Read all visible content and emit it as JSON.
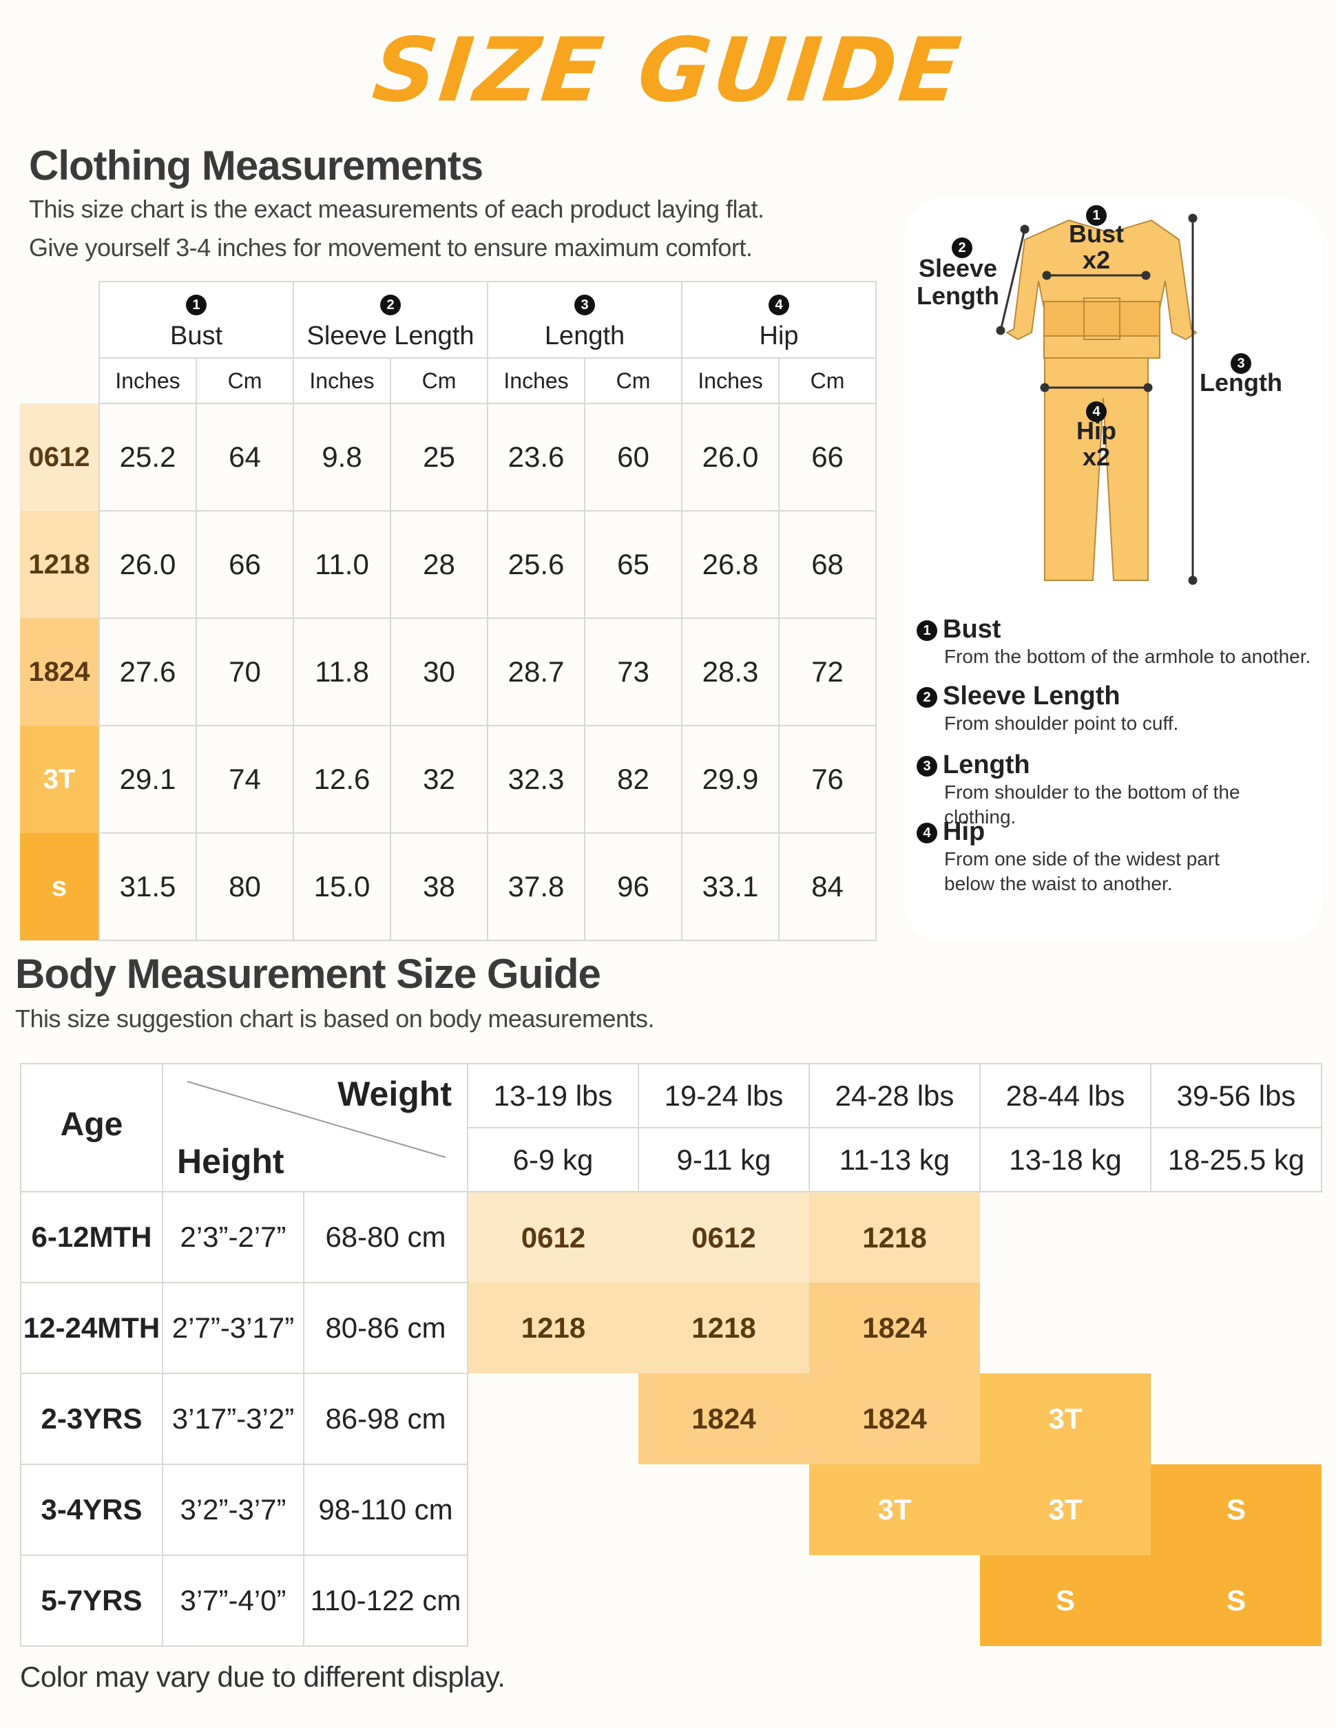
{
  "title": "SIZE GUIDE",
  "clothing": {
    "heading": "Clothing Measurements",
    "description": [
      "This size chart is the exact measurements of each product laying flat.",
      "Give yourself 3-4 inches for movement to ensure maximum comfort."
    ],
    "columns": [
      {
        "number": "1",
        "name": "Bust"
      },
      {
        "number": "2",
        "name": "Sleeve Length"
      },
      {
        "number": "3",
        "name": "Length"
      },
      {
        "number": "4",
        "name": "Hip"
      }
    ],
    "units": [
      "Inches",
      "Cm"
    ],
    "rows": [
      {
        "size": "0612",
        "values": [
          "25.2",
          "64",
          "9.8",
          "25",
          "23.6",
          "60",
          "26.0",
          "66"
        ]
      },
      {
        "size": "1218",
        "values": [
          "26.0",
          "66",
          "11.0",
          "28",
          "25.6",
          "65",
          "26.8",
          "68"
        ]
      },
      {
        "size": "1824",
        "values": [
          "27.6",
          "70",
          "11.8",
          "30",
          "28.7",
          "73",
          "28.3",
          "72"
        ]
      },
      {
        "size": "3T",
        "values": [
          "29.1",
          "74",
          "12.6",
          "32",
          "32.3",
          "82",
          "29.9",
          "76"
        ]
      },
      {
        "size": "s",
        "values": [
          "31.5",
          "80",
          "15.0",
          "38",
          "37.8",
          "96",
          "33.1",
          "84"
        ]
      }
    ]
  },
  "diagram": {
    "bust_note": "x2",
    "hip_note": "x2",
    "definitions": [
      "From the bottom of the armhole to another.",
      "From shoulder point to cuff.",
      "From shoulder to the bottom of the clothing.",
      "From one side of the widest part below the waist to another."
    ]
  },
  "body": {
    "heading": "Body Measurement Size Guide",
    "description": "This size suggestion chart is based on body measurements.",
    "age_label": "Age",
    "weight_label": "Weight",
    "height_label": "Height",
    "weights": [
      {
        "lbs": "13-19 lbs",
        "kg": "6-9 kg"
      },
      {
        "lbs": "19-24 lbs",
        "kg": "9-11 kg"
      },
      {
        "lbs": "24-28 lbs",
        "kg": "11-13 kg"
      },
      {
        "lbs": "28-44 lbs",
        "kg": "13-18 kg"
      },
      {
        "lbs": "39-56 lbs",
        "kg": "18-25.5 kg"
      }
    ],
    "rows": [
      {
        "age": "6-12MTH",
        "height_ft": "2’3”-2’7”",
        "height_cm": "68-80 cm",
        "sizes": [
          "0612",
          "0612",
          "1218",
          null,
          null
        ]
      },
      {
        "age": "12-24MTH",
        "height_ft": "2’7”-3’17”",
        "height_cm": "80-86 cm",
        "sizes": [
          "1218",
          "1218",
          "1824",
          null,
          null
        ]
      },
      {
        "age": "2-3YRS",
        "height_ft": "3’17”-3’2”",
        "height_cm": "86-98 cm",
        "sizes": [
          null,
          "1824",
          "1824",
          "3T",
          null
        ]
      },
      {
        "age": "3-4YRS",
        "height_ft": "3’2”-3’7”",
        "height_cm": "98-110 cm",
        "sizes": [
          null,
          null,
          "3T",
          "3T",
          "S"
        ]
      },
      {
        "age": "5-7YRS",
        "height_ft": "3’7”-4’0”",
        "height_cm": "110-122 cm",
        "sizes": [
          null,
          null,
          null,
          "S",
          "S"
        ]
      }
    ]
  },
  "size_colors": {
    "0612": {
      "background": "#fde8c8",
      "text": "#5a3a12"
    },
    "1218": {
      "background": "#fde0b0",
      "text": "#5a3a12"
    },
    "1824": {
      "background": "#fccf85",
      "text": "#5a3a12"
    },
    "3T": {
      "background": "#fcc35a",
      "text": "#ffffff"
    },
    "S": {
      "background": "#f9b236",
      "text": "#ffffff"
    }
  },
  "footer": "Color may vary due to different display."
}
